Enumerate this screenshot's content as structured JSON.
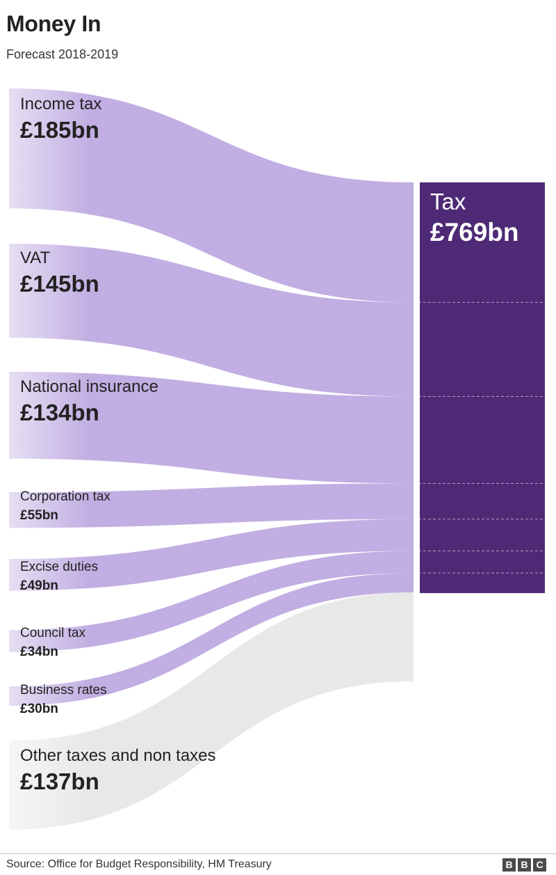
{
  "title": "Money In",
  "subtitle": "Forecast 2018-2019",
  "chart_data": {
    "type": "sankey",
    "unit": "£bn",
    "target": {
      "name": "Tax",
      "value_label": "£769bn",
      "value": 769
    },
    "sources": [
      {
        "name": "Income tax",
        "value_label": "£185bn",
        "value": 185,
        "flows_to": "Tax",
        "size": "big"
      },
      {
        "name": "VAT",
        "value_label": "£145bn",
        "value": 145,
        "flows_to": "Tax",
        "size": "big"
      },
      {
        "name": "National insurance",
        "value_label": "£134bn",
        "value": 134,
        "flows_to": "Tax",
        "size": "big"
      },
      {
        "name": "Corporation tax",
        "value_label": "£55bn",
        "value": 55,
        "flows_to": "Tax",
        "size": "small"
      },
      {
        "name": "Excise duties",
        "value_label": "£49bn",
        "value": 49,
        "flows_to": "Tax",
        "size": "small"
      },
      {
        "name": "Council tax",
        "value_label": "£34bn",
        "value": 34,
        "flows_to": "Tax",
        "size": "small"
      },
      {
        "name": "Business rates",
        "value_label": "£30bn",
        "value": 30,
        "flows_to": "Tax",
        "size": "small"
      },
      {
        "name": "Other taxes and non taxes",
        "value_label": "£137bn",
        "value": 137,
        "flows_to": null,
        "size": "big"
      }
    ],
    "colors": {
      "tax_flow": "#c1aee2",
      "tax_flow_light": "#e6dff3",
      "tax_node": "#4e2a76",
      "non_tax_flow": "#e8e8e8",
      "non_tax_flow_light": "#f6f6f6"
    }
  },
  "footer": {
    "source": "Source: Office for Budget Responsibility, HM Treasury",
    "logo_letters": [
      "B",
      "B",
      "C"
    ]
  }
}
